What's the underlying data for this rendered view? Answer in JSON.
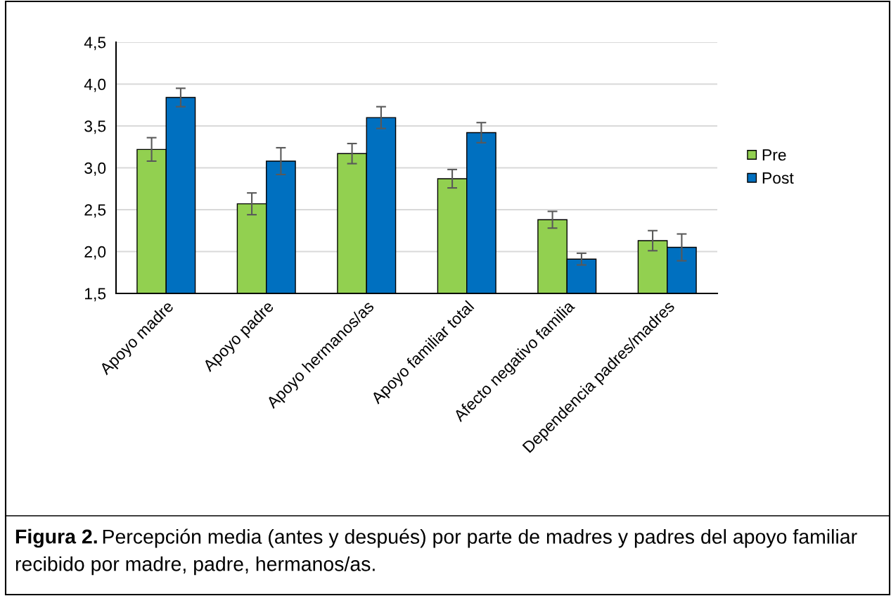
{
  "chart_data": {
    "type": "bar",
    "categories": [
      "Apoyo madre",
      "Apoyo padre",
      "Apoyo hermanos/as",
      "Apoyo familiar total",
      "Afecto negativo familia",
      "Dependencia padres/madres"
    ],
    "series": [
      {
        "name": "Pre",
        "color": "#92d050",
        "values": [
          3.22,
          2.57,
          3.17,
          2.87,
          2.38,
          2.13
        ],
        "errors": [
          0.14,
          0.13,
          0.12,
          0.11,
          0.1,
          0.12
        ]
      },
      {
        "name": "Post",
        "color": "#0070c0",
        "values": [
          3.84,
          3.08,
          3.6,
          3.42,
          1.91,
          2.05
        ],
        "errors": [
          0.11,
          0.16,
          0.13,
          0.12,
          0.07,
          0.16
        ]
      }
    ],
    "ylim": [
      1.5,
      4.5
    ],
    "yticks": [
      {
        "value": 1.5,
        "label": "1,5"
      },
      {
        "value": 2.0,
        "label": "2,0"
      },
      {
        "value": 2.5,
        "label": "2,5"
      },
      {
        "value": 3.0,
        "label": "3,0"
      },
      {
        "value": 3.5,
        "label": "3,5"
      },
      {
        "value": 4.0,
        "label": "4,0"
      },
      {
        "value": 4.5,
        "label": "4,5"
      }
    ],
    "grid": "y",
    "legend": "right",
    "annotations": [
      "Figura 2.",
      "Percepción media (antes y después) por parte de madres y padres del apoyo familiar recibido por madre, padre, hermanos/as."
    ]
  }
}
